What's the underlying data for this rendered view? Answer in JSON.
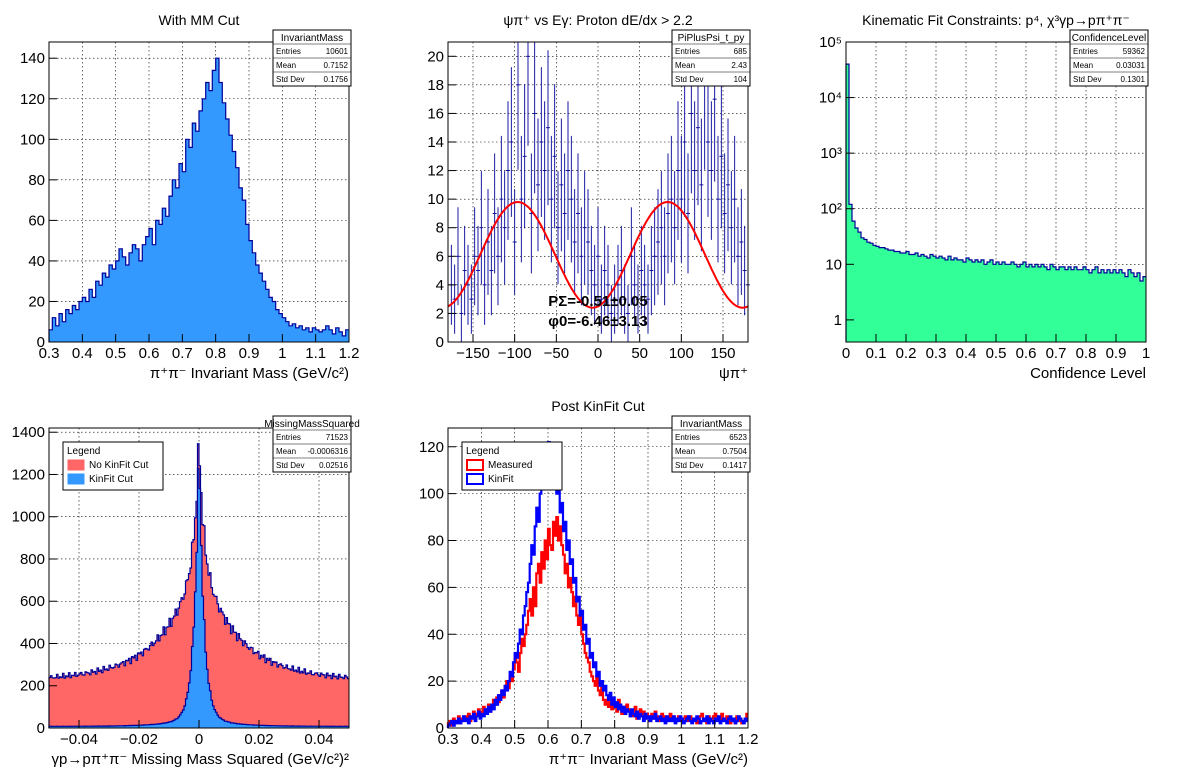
{
  "colors": {
    "blue_fill": "#3399ff",
    "navy": "#000099",
    "red_fill": "#ff6666",
    "green_fill": "#33ff99",
    "red_line": "#ff0000",
    "blue_line": "#0000ff"
  },
  "chart_data": [
    {
      "id": "p1",
      "type": "histogram",
      "title": "With MM Cut",
      "xlabel": "π⁺π⁻ Invariant Mass (GeV/c²)",
      "ylabel": "",
      "xlim": [
        0.3,
        1.2
      ],
      "ylim": [
        0,
        148
      ],
      "xticks": [
        0.3,
        0.4,
        0.5,
        0.6,
        0.7,
        0.8,
        0.9,
        1,
        1.1,
        1.2
      ],
      "xtick_labels": [
        "0.3",
        "0.4",
        "0.5",
        "0.6",
        "0.7",
        "0.8",
        "0.9",
        "1",
        "1.1",
        "1.2"
      ],
      "yticks": [
        0,
        20,
        40,
        60,
        80,
        100,
        120,
        140
      ],
      "ytick_labels": [
        "0",
        "20",
        "40",
        "60",
        "80",
        "100",
        "120",
        "140"
      ],
      "grid": true,
      "stats": {
        "name": "InvariantMass",
        "rows": [
          [
            "Entries",
            "10601"
          ],
          [
            "Mean",
            "0.7152"
          ],
          [
            "Std Dev",
            "0.1756"
          ]
        ]
      },
      "series": [
        {
          "x_start": 0.3,
          "bin_width": 0.01,
          "color": "#3399ff",
          "outline": "#000099",
          "values": [
            6,
            12,
            8,
            14,
            10,
            16,
            14,
            18,
            16,
            20,
            22,
            20,
            26,
            22,
            30,
            28,
            34,
            32,
            38,
            36,
            40,
            46,
            42,
            38,
            44,
            48,
            46,
            40,
            48,
            52,
            56,
            48,
            60,
            58,
            66,
            62,
            72,
            80,
            76,
            88,
            84,
            100,
            96,
            108,
            104,
            114,
            120,
            128,
            124,
            134,
            140,
            128,
            118,
            110,
            102,
            94,
            86,
            76,
            70,
            58,
            50,
            44,
            38,
            34,
            30,
            26,
            22,
            20,
            16,
            14,
            12,
            10,
            8,
            9,
            7,
            8,
            6,
            7,
            5,
            7,
            6,
            5,
            6,
            8,
            6,
            4,
            7,
            5,
            3,
            6
          ]
        }
      ]
    },
    {
      "id": "p2",
      "type": "scatter",
      "title": "ψπ⁺ vs Eγ: Proton dE/dx > 2.2",
      "xlabel": "ψπ⁺",
      "ylabel": "",
      "xlim": [
        -180,
        180
      ],
      "ylim": [
        0,
        21
      ],
      "xticks": [
        -150,
        -100,
        -50,
        0,
        50,
        100,
        150
      ],
      "xtick_labels": [
        "−150",
        "−100",
        "−50",
        "0",
        "50",
        "100",
        "150"
      ],
      "yticks": [
        0,
        2,
        4,
        6,
        8,
        10,
        12,
        14,
        16,
        18,
        20
      ],
      "ytick_labels": [
        "0",
        "2",
        "4",
        "6",
        "8",
        "10",
        "12",
        "14",
        "16",
        "18",
        "20"
      ],
      "grid": true,
      "stats": {
        "name": "PiPlusPsi_t_py",
        "rows": [
          [
            "Entries",
            "685"
          ],
          [
            "Mean",
            "2.43"
          ],
          [
            "Std Dev",
            "104"
          ]
        ]
      },
      "annotations": [
        "PΣ=-0.51±0.05",
        "φ0=-6.46±3.13"
      ],
      "series": [
        {
          "name": "data",
          "color": "#000099",
          "x_start": -178,
          "bin_width": 4,
          "values": [
            4,
            3,
            6,
            2,
            5,
            4,
            3,
            6,
            5,
            8,
            4,
            7,
            5,
            9,
            6,
            10,
            8,
            12,
            14,
            7,
            18,
            10,
            13,
            20,
            9,
            16,
            11,
            14,
            12,
            15,
            10,
            13,
            8,
            11,
            9,
            12,
            10,
            7,
            9,
            6,
            8,
            7,
            5,
            4,
            6,
            3,
            5,
            4,
            2,
            3,
            4,
            5,
            3,
            2,
            6,
            4,
            3,
            5,
            4,
            3,
            5,
            6,
            7,
            8,
            6,
            9,
            10,
            8,
            12,
            10,
            14,
            9,
            16,
            12,
            15,
            11,
            18,
            14,
            12,
            17,
            10,
            13,
            9,
            11,
            8,
            10,
            6,
            7,
            5,
            4
          ]
        },
        {
          "name": "fit",
          "color": "#ff0000",
          "fit": {
            "a": 6.1,
            "b": 3.7,
            "phase_deg": -6.46
          }
        }
      ]
    },
    {
      "id": "p3",
      "type": "histogram",
      "title": "Kinematic Fit Constraints: p⁴, χ³γp→pπ⁺π⁻",
      "xlabel": "Confidence Level",
      "ylabel": "",
      "xlim": [
        0,
        1
      ],
      "ylim_log": [
        0.4,
        100000
      ],
      "log_y": true,
      "xticks": [
        0,
        0.1,
        0.2,
        0.3,
        0.4,
        0.5,
        0.6,
        0.7,
        0.8,
        0.9,
        1
      ],
      "xtick_labels": [
        "0",
        "0.1",
        "0.2",
        "0.3",
        "0.4",
        "0.5",
        "0.6",
        "0.7",
        "0.8",
        "0.9",
        "1"
      ],
      "yticks": [
        1,
        10,
        100,
        1000,
        10000,
        100000
      ],
      "ytick_labels": [
        "1",
        "10",
        "10²",
        "10³",
        "10⁴",
        "10⁵"
      ],
      "grid": true,
      "stats": {
        "name": "ConfidenceLevel",
        "rows": [
          [
            "Entries",
            "59362"
          ],
          [
            "Mean",
            "0.03031"
          ],
          [
            "Std Dev",
            "0.1301"
          ]
        ]
      },
      "series": [
        {
          "x_start": 0,
          "bin_width": 0.01,
          "color": "#33ff99",
          "outline": "#000099",
          "values": [
            40000,
            120,
            60,
            45,
            38,
            30,
            28,
            25,
            24,
            22,
            21,
            20,
            20,
            19,
            18,
            18,
            17,
            17,
            16,
            16,
            17,
            15,
            15,
            16,
            14,
            15,
            14,
            13,
            15,
            14,
            13,
            14,
            13,
            12,
            14,
            12,
            13,
            12,
            12,
            11,
            13,
            12,
            11,
            12,
            11,
            12,
            10,
            11,
            12,
            10,
            11,
            10,
            11,
            10,
            10,
            11,
            10,
            9,
            10,
            11,
            9,
            10,
            9,
            10,
            9,
            10,
            9,
            8,
            10,
            9,
            8,
            9,
            9,
            8,
            9,
            8,
            9,
            8,
            8,
            9,
            8,
            7,
            8,
            9,
            7,
            8,
            7,
            8,
            7,
            8,
            7,
            8,
            7,
            6,
            8,
            7,
            6,
            7,
            5,
            6
          ]
        }
      ]
    },
    {
      "id": "p4",
      "type": "histogram",
      "title": "",
      "xlabel": "γp→pπ⁺π⁻ Missing Mass Squared (GeV/c²)²",
      "ylabel": "",
      "xlim": [
        -0.05,
        0.05
      ],
      "ylim": [
        0,
        1420
      ],
      "xticks": [
        -0.04,
        -0.02,
        0,
        0.02,
        0.04
      ],
      "xtick_labels": [
        "−0.04",
        "−0.02",
        "0",
        "0.02",
        "0.04"
      ],
      "yticks": [
        0,
        200,
        400,
        600,
        800,
        1000,
        1200,
        1400
      ],
      "ytick_labels": [
        "0",
        "200",
        "400",
        "600",
        "800",
        "1000",
        "1200",
        "1400"
      ],
      "grid": true,
      "stats": {
        "name": "MissingMassSquared",
        "rows": [
          [
            "Entries",
            "71523"
          ],
          [
            "Mean",
            "-0.0006316"
          ],
          [
            "Std Dev",
            "0.02516"
          ]
        ]
      },
      "legend": {
        "title": "Legend",
        "position": "top-left"
      },
      "series": [
        {
          "name": "No KinFit Cut",
          "x_start": -0.05,
          "bin_width": 0.0005,
          "color": "#ff6666",
          "outline": "#000099",
          "shape": {
            "kind": "peak",
            "base": 230,
            "base_slope": 0.4,
            "amp_wide": 560,
            "w_wide": 0.012,
            "amp_narrow": 560,
            "w_narrow": 0.0015
          }
        },
        {
          "name": "KinFit Cut",
          "x_start": -0.05,
          "bin_width": 0.0005,
          "color": "#3399ff",
          "outline": "#000099",
          "shape": {
            "kind": "peak",
            "base": 8,
            "base_slope": 0,
            "amp_wide": 60,
            "w_wide": 0.008,
            "amp_narrow": 1280,
            "w_narrow": 0.0016
          }
        }
      ]
    },
    {
      "id": "p5",
      "type": "histogram",
      "title": "Post KinFit Cut",
      "xlabel": "π⁺π⁻ Invariant Mass (GeV/c²)",
      "ylabel": "",
      "xlim": [
        0.3,
        1.2
      ],
      "ylim": [
        0,
        128
      ],
      "xticks": [
        0.3,
        0.4,
        0.5,
        0.6,
        0.7,
        0.8,
        0.9,
        1,
        1.1,
        1.2
      ],
      "xtick_labels": [
        "0.3",
        "0.4",
        "0.5",
        "0.6",
        "0.7",
        "0.8",
        "0.9",
        "1",
        "1.1",
        "1.2"
      ],
      "yticks": [
        0,
        20,
        40,
        60,
        80,
        100,
        120
      ],
      "ytick_labels": [
        "0",
        "20",
        "40",
        "60",
        "80",
        "100",
        "120"
      ],
      "grid": true,
      "stats": {
        "name": "InvariantMass",
        "rows": [
          [
            "Entries",
            "6523"
          ],
          [
            "Mean",
            "0.7504"
          ],
          [
            "Std Dev",
            "0.1417"
          ]
        ]
      },
      "legend": {
        "title": "Legend",
        "position": "top-left"
      },
      "series": [
        {
          "name": "Measured",
          "x_start": 0.3,
          "bin_width": 0.005,
          "color": "#ff0000",
          "values": [
            2,
            3,
            1,
            4,
            2,
            3,
            5,
            2,
            4,
            3,
            5,
            4,
            6,
            3,
            5,
            7,
            4,
            6,
            8,
            5,
            7,
            9,
            6,
            8,
            10,
            7,
            9,
            12,
            10,
            13,
            11,
            14,
            16,
            13,
            18,
            20,
            17,
            22,
            20,
            25,
            30,
            28,
            24,
            32,
            38,
            35,
            40,
            44,
            50,
            55,
            48,
            60,
            52,
            66,
            70,
            62,
            75,
            68,
            80,
            72,
            85,
            78,
            76,
            88,
            82,
            90,
            80,
            86,
            78,
            74,
            66,
            70,
            60,
            64,
            58,
            52,
            56,
            48,
            44,
            50,
            40,
            36,
            32,
            30,
            28,
            24,
            22,
            20,
            18,
            22,
            16,
            14,
            18,
            12,
            10,
            12,
            9,
            11,
            8,
            10,
            9,
            7,
            12,
            8,
            6,
            9,
            7,
            10,
            8,
            6,
            5,
            7,
            9,
            4,
            6,
            8,
            5,
            7,
            4,
            6,
            5,
            3,
            6,
            4,
            7,
            5,
            3,
            4,
            6,
            4,
            5,
            3,
            4,
            6,
            3,
            5,
            4,
            3,
            5,
            4,
            3,
            4,
            5,
            3,
            4,
            5,
            3,
            4,
            3,
            2,
            4,
            5,
            6,
            3,
            4,
            2,
            5,
            3,
            4,
            5,
            6,
            5,
            4,
            3,
            6,
            4,
            3,
            5,
            4,
            2,
            3,
            4,
            2,
            5,
            3,
            4,
            2,
            3,
            4,
            6
          ]
        },
        {
          "name": "KinFit",
          "x_start": 0.3,
          "bin_width": 0.005,
          "color": "#0000ff",
          "values": [
            1,
            2,
            3,
            1,
            3,
            2,
            4,
            2,
            3,
            5,
            3,
            4,
            2,
            5,
            4,
            6,
            3,
            5,
            7,
            4,
            6,
            5,
            8,
            6,
            9,
            7,
            10,
            8,
            12,
            10,
            14,
            12,
            16,
            14,
            18,
            16,
            20,
            24,
            22,
            28,
            32,
            30,
            36,
            42,
            40,
            48,
            52,
            58,
            62,
            70,
            78,
            74,
            86,
            94,
            88,
            100,
            110,
            104,
            118,
            108,
            122,
            112,
            120,
            106,
            114,
            100,
            104,
            92,
            96,
            84,
            88,
            76,
            80,
            70,
            72,
            62,
            64,
            54,
            56,
            48,
            50,
            42,
            44,
            36,
            38,
            30,
            32,
            26,
            28,
            22,
            24,
            18,
            20,
            16,
            18,
            14,
            12,
            15,
            10,
            13,
            9,
            11,
            8,
            10,
            7,
            9,
            6,
            8,
            7,
            5,
            8,
            6,
            5,
            7,
            4,
            6,
            5,
            3,
            6,
            4,
            5,
            3,
            5,
            4,
            6,
            3,
            4,
            5,
            3,
            4,
            2,
            5,
            3,
            4,
            3,
            5,
            2,
            4,
            3,
            5,
            4,
            2,
            3,
            4,
            5,
            3,
            2,
            4,
            3,
            5,
            4,
            2,
            3,
            4,
            3,
            5,
            2,
            4,
            3,
            2,
            4,
            3,
            5,
            2,
            3,
            4,
            3,
            2,
            4,
            5,
            3,
            4,
            2,
            3,
            5,
            4,
            3,
            2,
            4,
            3
          ]
        }
      ]
    }
  ]
}
